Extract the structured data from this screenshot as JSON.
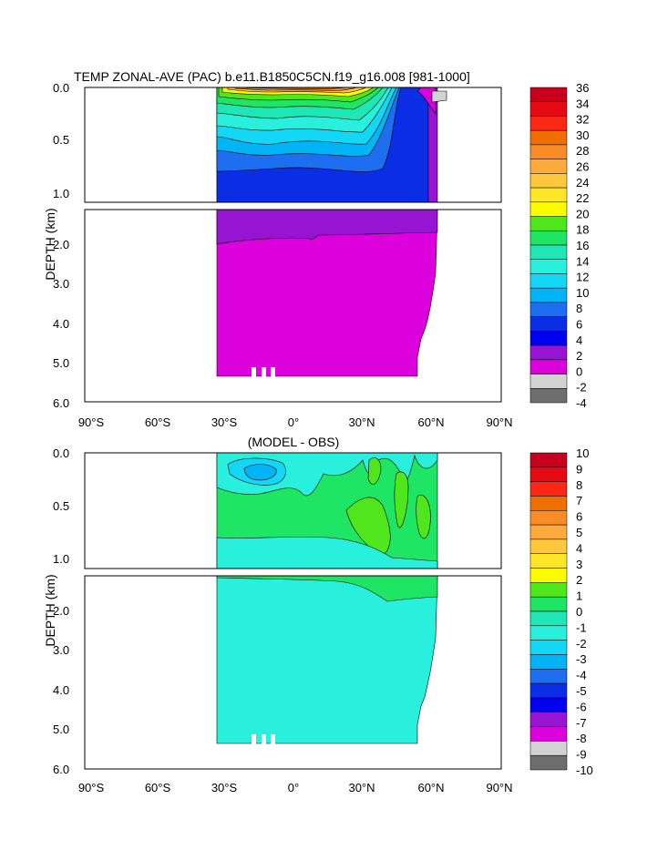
{
  "chart_data": [
    {
      "type": "heatmap",
      "title": "TEMP ZONAL-AVE (PAC) b.e11.B1850C5CN.f19_g16.008 [981-1000]",
      "ylabel": "DEPTH (km)",
      "xlabel": "",
      "x_ticks": [
        "90°S",
        "60°S",
        "30°S",
        "0°",
        "30°N",
        "60°N",
        "90°N"
      ],
      "x_range": [
        -90,
        90
      ],
      "y_range": [
        0,
        6
      ],
      "y_ticks_upper": [
        "0.0",
        "0.5",
        "1.0"
      ],
      "y_ticks_lower": [
        "2.0",
        "3.0",
        "4.0",
        "5.0",
        "6.0"
      ],
      "colorbar_labels": [
        "36",
        "34",
        "32",
        "30",
        "28",
        "26",
        "24",
        "22",
        "20",
        "18",
        "16",
        "14",
        "12",
        "10",
        "8",
        "6",
        "4",
        "2",
        "0",
        "-2",
        "-4"
      ],
      "colorbar_colors": [
        "#c8001e",
        "#e60a14",
        "#fa2814",
        "#f06e00",
        "#fa8c28",
        "#ffaa3c",
        "#ffc83c",
        "#ffe628",
        "#fcfc00",
        "#50e61e",
        "#1ee664",
        "#1ee6b4",
        "#28f0dc",
        "#14d7f5",
        "#00b4f5",
        "#1e6ef0",
        "#0a2de6",
        "#0000f0",
        "#9614d2",
        "#dc00dc",
        "#d2d2d2",
        "#6e6e6e"
      ]
    },
    {
      "type": "heatmap",
      "title": "(MODEL - OBS)",
      "ylabel": "DEPTH (km)",
      "xlabel": "",
      "x_ticks": [
        "90°S",
        "60°S",
        "30°S",
        "0°",
        "30°N",
        "60°N",
        "90°N"
      ],
      "x_range": [
        -90,
        90
      ],
      "y_range": [
        0,
        6
      ],
      "y_ticks_upper": [
        "0.0",
        "0.5",
        "1.0"
      ],
      "y_ticks_lower": [
        "2.0",
        "3.0",
        "4.0",
        "5.0",
        "6.0"
      ],
      "colorbar_labels": [
        "10",
        "9",
        "8",
        "7",
        "6",
        "5",
        "4",
        "3",
        "2",
        "1",
        "0",
        "-1",
        "-2",
        "-3",
        "-4",
        "-5",
        "-6",
        "-7",
        "-8",
        "-9",
        "-10"
      ],
      "colorbar_colors": [
        "#c8001e",
        "#e60a14",
        "#fa2814",
        "#f06e00",
        "#fa8c28",
        "#ffaa3c",
        "#ffc83c",
        "#ffe628",
        "#fcfc00",
        "#50e61e",
        "#1ee664",
        "#1ee6b4",
        "#28f0dc",
        "#14d7f5",
        "#00b4f5",
        "#1e6ef0",
        "#0a2de6",
        "#0000f0",
        "#9614d2",
        "#dc00dc",
        "#d2d2d2",
        "#6e6e6e"
      ]
    }
  ]
}
